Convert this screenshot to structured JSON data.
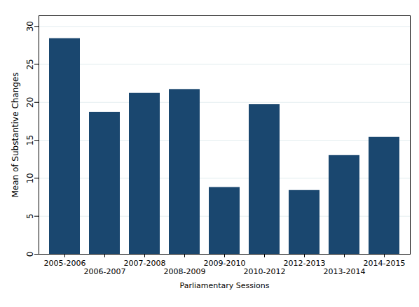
{
  "chart_data": {
    "type": "bar",
    "xlabel": "Parliamentary Sessions",
    "ylabel": "Mean of Substantive Changes",
    "categories": [
      "2005-2006",
      "2006-2007",
      "2007-2008",
      "2008-2009",
      "2009-2010",
      "2010-2012",
      "2012-2013",
      "2013-2014",
      "2014-2015"
    ],
    "values": [
      28.4,
      18.7,
      21.2,
      21.7,
      8.8,
      19.7,
      8.4,
      13.0,
      15.4
    ],
    "color": "#1a476f",
    "ylim": [
      0,
      31.4
    ],
    "yticks": [
      0,
      5,
      10,
      15,
      20,
      25,
      30
    ],
    "grid": true
  }
}
